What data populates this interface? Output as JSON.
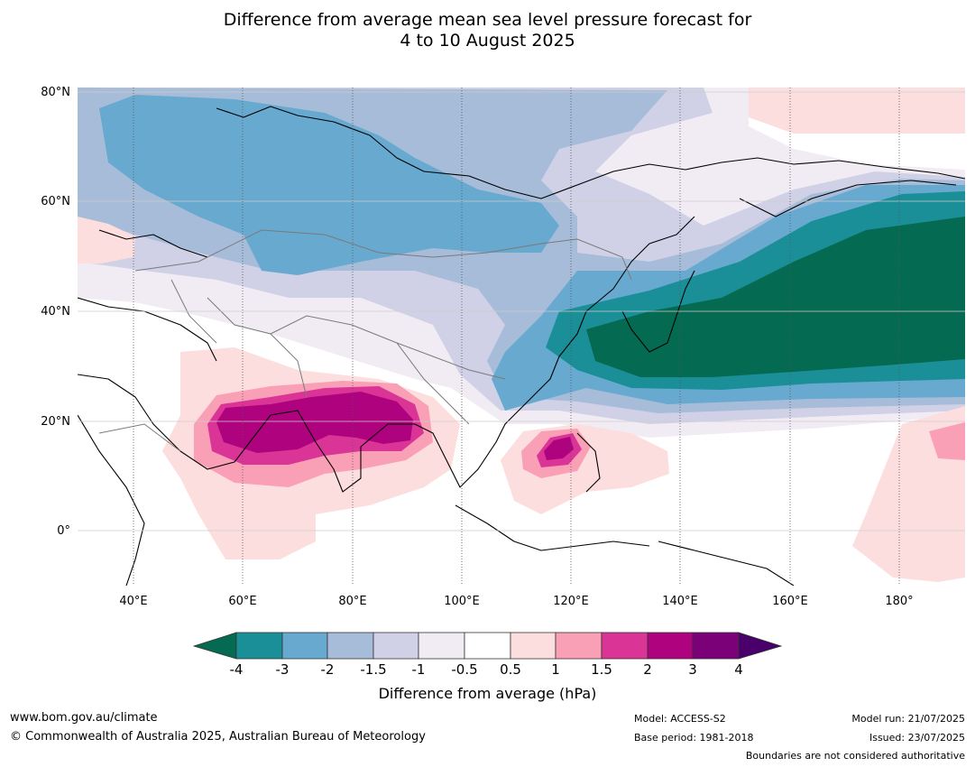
{
  "title_line1": "Difference from average mean sea level pressure forecast for",
  "title_line2": "4 to 10 August 2025",
  "lat_labels": [
    "80°N",
    "60°N",
    "40°N",
    "20°N",
    "0°"
  ],
  "lon_labels": [
    "40°E",
    "60°E",
    "80°E",
    "100°E",
    "120°E",
    "140°E",
    "160°E",
    "180°"
  ],
  "colorbar": {
    "ticks": [
      "-4",
      "-3",
      "-2",
      "-1.5",
      "-1",
      "-0.5",
      "0.5",
      "1",
      "1.5",
      "2",
      "3",
      "4"
    ],
    "colors": [
      "#056a52",
      "#1a8f97",
      "#67a9cf",
      "#a6bcd9",
      "#d0d1e6",
      "#f1ecf4",
      "#ffffff",
      "#fddede",
      "#f99fb6",
      "#db3497",
      "#ae027e",
      "#7a0177",
      "#49006a"
    ],
    "label": "Difference from average (hPa)"
  },
  "footer": {
    "website": "www.bom.gov.au/climate",
    "copyright": "© Commonwealth of Australia 2025, Australian Bureau of Meteorology",
    "model": "Model: ACCESS-S2",
    "base_period": "Base period: 1981-2018",
    "model_run": "Model run: 21/07/2025",
    "issued": "Issued: 23/07/2025",
    "disclaimer": "Boundaries are not considered authoritative"
  }
}
